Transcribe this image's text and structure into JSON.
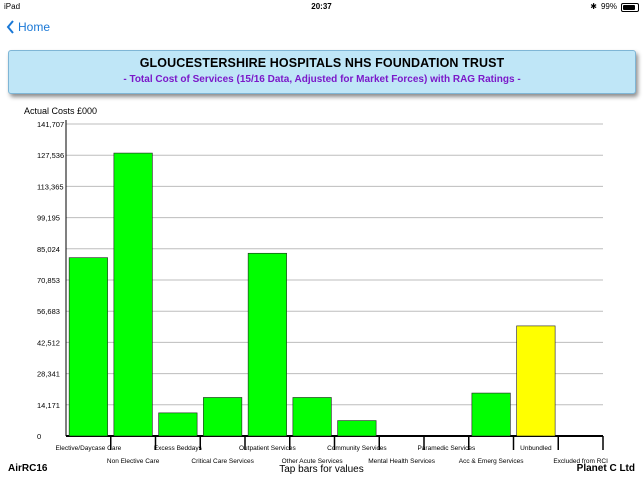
{
  "status": {
    "device": "iPad",
    "time": "20:37",
    "battery": "99%"
  },
  "nav": {
    "back_label": "Home"
  },
  "header": {
    "title": "GLOUCESTERSHIRE HOSPITALS NHS FOUNDATION TRUST",
    "subtitle": "- Total Cost of Services (15/16 Data, Adjusted for Market Forces) with RAG Ratings -"
  },
  "footer": {
    "left": "AirRC16",
    "center": "Tap bars for values",
    "right": "Planet C Ltd"
  },
  "colors": {
    "green": "#00ff00",
    "yellow": "#ffff00",
    "title_bg": "#bfe6f7",
    "subtitle": "#7b18c9",
    "link": "#1a78d6"
  },
  "chart_data": {
    "type": "bar",
    "ylabel": "Actual Costs £000",
    "ylim": [
      0,
      141707
    ],
    "yticks": [
      "0",
      "14,171",
      "28,341",
      "42,512",
      "56,683",
      "70,853",
      "85,024",
      "99,195",
      "113,365",
      "127,536",
      "141,707"
    ],
    "grid": true,
    "categories": [
      "Elective/Daycase Care",
      "Non Elective Care",
      "Excess Beddays",
      "Critical Care Services",
      "Outpatient Services",
      "Other Acute Services",
      "Community Services",
      "Mental Health Services",
      "Paramedic Services",
      "Acc & Emerg Services",
      "Unbundled",
      "Excluded from RCI"
    ],
    "values": [
      81000,
      128500,
      10500,
      17500,
      83000,
      17500,
      7000,
      0,
      0,
      19500,
      50000,
      0
    ],
    "rag": [
      "green",
      "green",
      "green",
      "green",
      "green",
      "green",
      "green",
      "green",
      "green",
      "green",
      "yellow",
      "green"
    ]
  }
}
